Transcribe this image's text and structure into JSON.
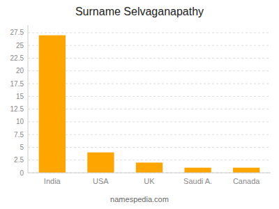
{
  "chart_data": {
    "type": "bar",
    "title": "Surname Selvaganapathy",
    "categories": [
      "India",
      "USA",
      "UK",
      "Saudi A.",
      "Canada"
    ],
    "values": [
      27,
      4,
      2,
      1,
      1
    ],
    "color": "#FFA500",
    "ylim": [
      0,
      29
    ],
    "yticks": [
      0,
      2.5,
      5,
      7.5,
      10,
      12.5,
      15,
      17.5,
      20,
      22.5,
      25,
      27.5
    ],
    "grid": true,
    "annotations": [
      "namespedia.com"
    ]
  }
}
